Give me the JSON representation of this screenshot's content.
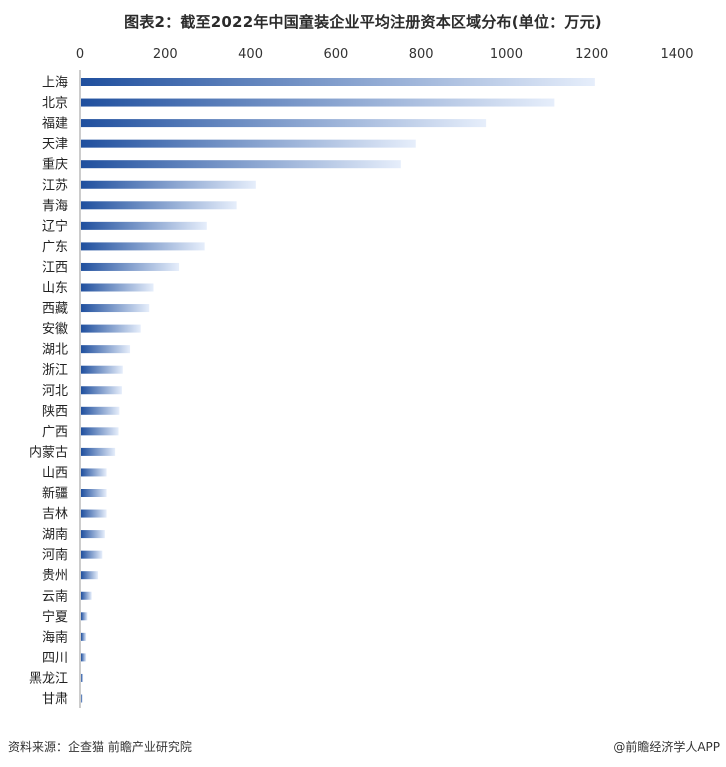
{
  "title": "图表2：截至2022年中国童装企业平均注册资本区域分布(单位：万元)",
  "source": "资料来源：企查猫 前瞻产业研究院",
  "credit": "@前瞻经济学人APP",
  "colors": {
    "bar_dark": "#1f4f9e",
    "bar_light": "#e6eefb",
    "axis": "#999999"
  },
  "chart_data": {
    "type": "bar",
    "orientation": "horizontal",
    "title": "图表2：截至2022年中国童装企业平均注册资本区域分布(单位：万元)",
    "xlabel": "",
    "ylabel": "",
    "xlim": [
      0,
      1400
    ],
    "xticks": [
      0,
      200,
      400,
      600,
      800,
      1000,
      1200,
      1400
    ],
    "axis_position": "top",
    "grid": false,
    "categories": [
      "上海",
      "北京",
      "福建",
      "天津",
      "重庆",
      "江苏",
      "青海",
      "辽宁",
      "广东",
      "江西",
      "山东",
      "西藏",
      "安徽",
      "湖北",
      "浙江",
      "河北",
      "陕西",
      "广西",
      "内蒙古",
      "山西",
      "新疆",
      "吉林",
      "湖南",
      "河南",
      "贵州",
      "云南",
      "宁夏",
      "海南",
      "四川",
      "黑龙江",
      "甘肃"
    ],
    "values": [
      1205,
      1110,
      950,
      785,
      750,
      410,
      365,
      295,
      290,
      230,
      170,
      160,
      140,
      115,
      98,
      96,
      90,
      88,
      80,
      60,
      60,
      60,
      56,
      50,
      40,
      25,
      15,
      12,
      12,
      5,
      3
    ]
  }
}
